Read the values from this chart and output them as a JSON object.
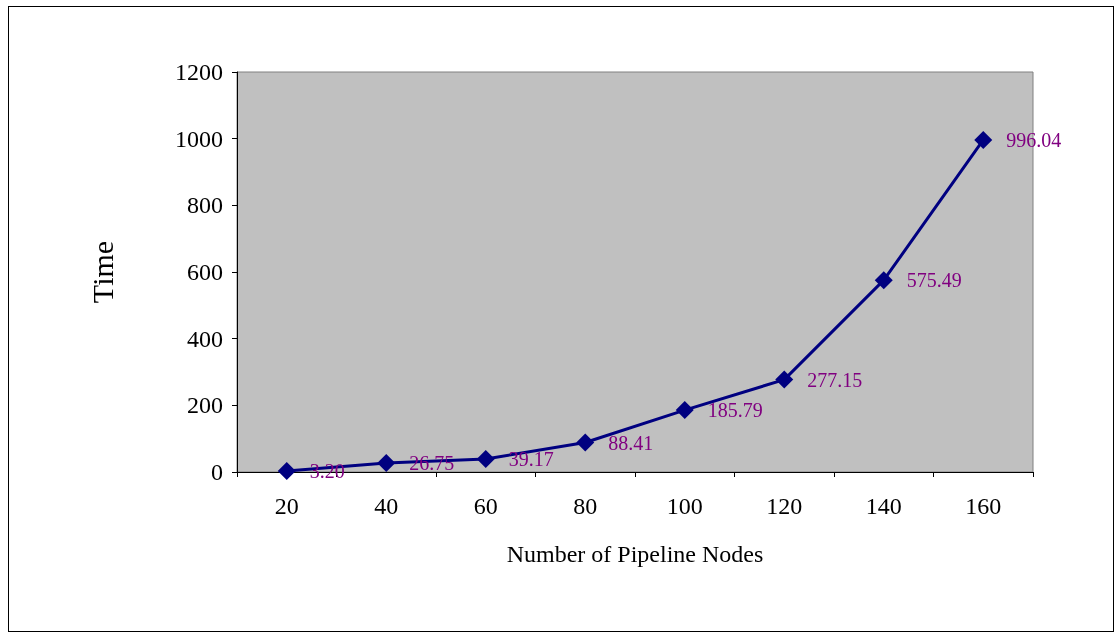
{
  "chart_data": {
    "type": "line",
    "xlabel": "Number of Pipeline Nodes",
    "ylabel": "Time",
    "categories": [
      "20",
      "40",
      "60",
      "80",
      "100",
      "120",
      "140",
      "160"
    ],
    "series": [
      {
        "color": "#000080",
        "values": [
          3.2,
          26.75,
          39.17,
          88.41,
          185.79,
          277.15,
          575.49,
          996.04
        ],
        "value_labels": [
          "3.20",
          "26.75",
          "39.17",
          "88.41",
          "185.79",
          "277.15",
          "575.49",
          "996.04"
        ]
      }
    ],
    "ylim": [
      0,
      1200
    ],
    "yticks": [
      0,
      200,
      400,
      600,
      800,
      1000,
      1200
    ],
    "grid": false,
    "marker": "diamond",
    "line_style": "solid"
  }
}
